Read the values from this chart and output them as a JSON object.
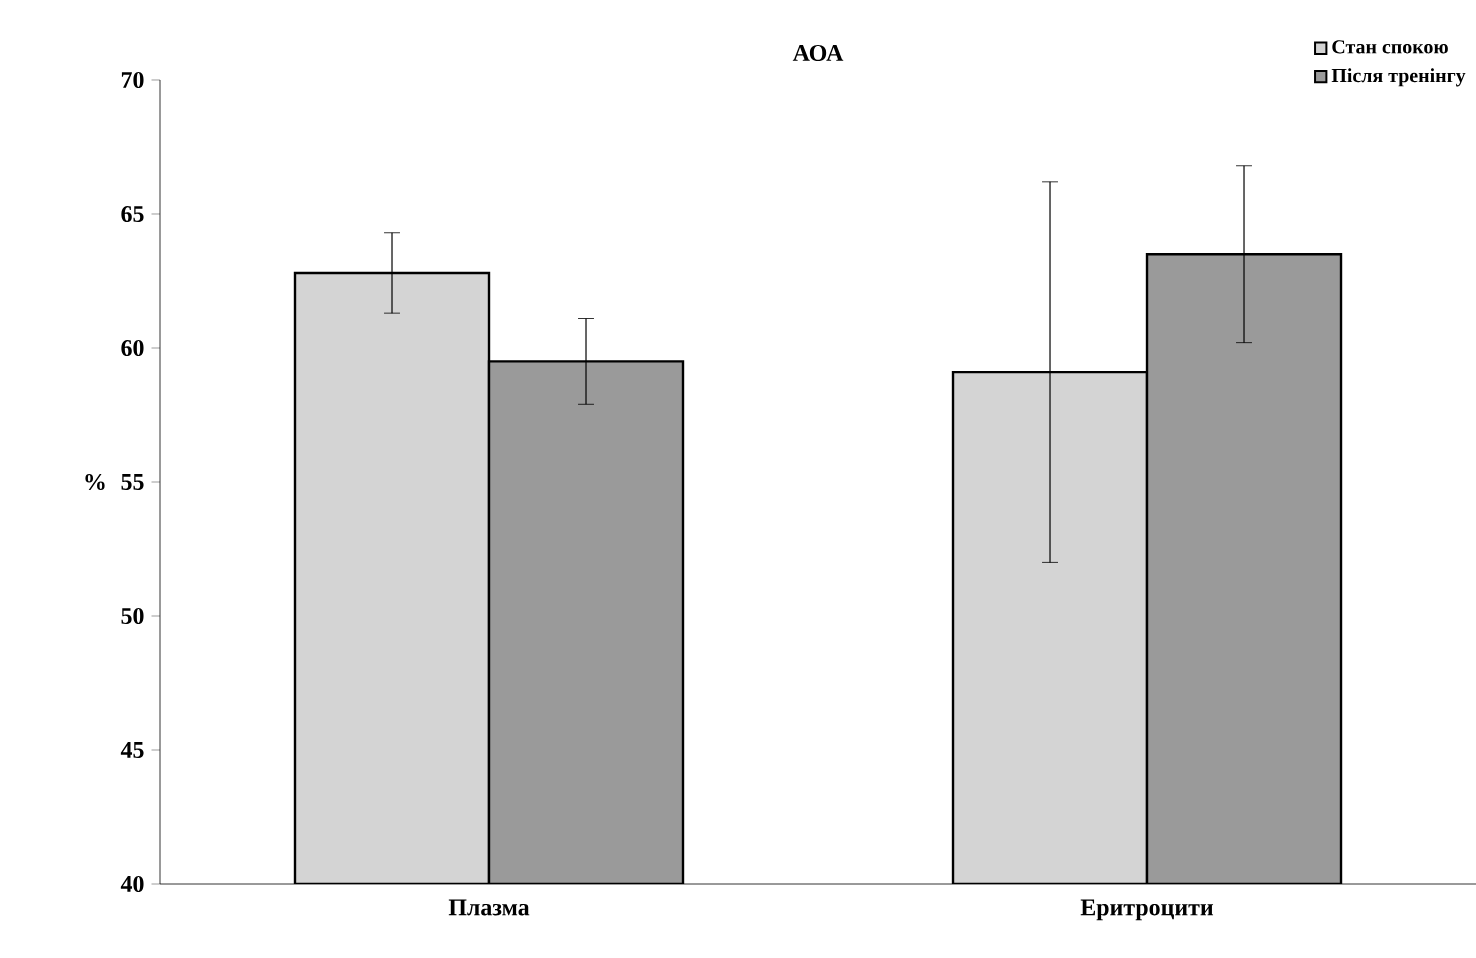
{
  "chart_data": {
    "type": "bar",
    "title": "АОА",
    "ylabel": "%",
    "categories": [
      "Плазма",
      "Еритроцити"
    ],
    "series": [
      {
        "name": "Стан спокою",
        "color": "#d4d4d4",
        "values": [
          62.8,
          59.1
        ],
        "errors": [
          1.5,
          7.1
        ]
      },
      {
        "name": "Після тренінгу",
        "color": "#9a9a9a",
        "values": [
          59.5,
          63.5
        ],
        "errors": [
          1.6,
          3.3
        ]
      }
    ],
    "ylim": [
      40,
      70
    ],
    "yticks": [
      40,
      45,
      50,
      55,
      60,
      65,
      70
    ],
    "legend": "top right",
    "grid": false
  }
}
